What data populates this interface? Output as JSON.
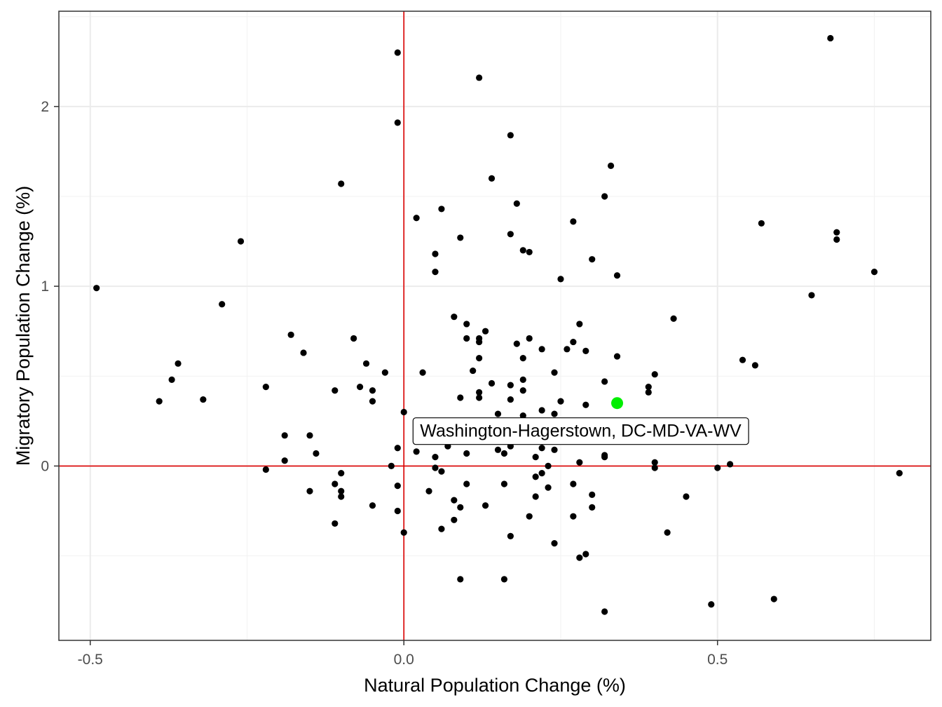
{
  "chart_data": {
    "type": "scatter",
    "title": "",
    "xlabel": "Natural Population Change (%)",
    "ylabel": "Migratory Population Change (%)",
    "xlim": [
      -0.55,
      0.84
    ],
    "ylim": [
      -0.97,
      2.53
    ],
    "x_ticks": [
      -0.5,
      0.0,
      0.5
    ],
    "x_tick_labels": [
      "-0.5",
      "0.0",
      "0.5"
    ],
    "y_ticks": [
      0,
      1,
      2
    ],
    "y_tick_labels": [
      "0",
      "1",
      "2"
    ],
    "grid": true,
    "theme": "bw",
    "reference_lines": {
      "x": 0,
      "y": 0,
      "color": "#dd0000"
    },
    "point_color": "#000000",
    "highlight_color": "#00ee00",
    "points": [
      {
        "x": -0.49,
        "y": 0.99
      },
      {
        "x": -0.39,
        "y": 0.36
      },
      {
        "x": -0.37,
        "y": 0.48
      },
      {
        "x": -0.36,
        "y": 0.57
      },
      {
        "x": -0.32,
        "y": 0.37
      },
      {
        "x": -0.29,
        "y": 0.9
      },
      {
        "x": -0.26,
        "y": 1.25
      },
      {
        "x": -0.22,
        "y": 0.44
      },
      {
        "x": -0.22,
        "y": -0.02
      },
      {
        "x": -0.19,
        "y": 0.17
      },
      {
        "x": -0.19,
        "y": 0.03
      },
      {
        "x": -0.18,
        "y": 0.73
      },
      {
        "x": -0.16,
        "y": 0.63
      },
      {
        "x": -0.15,
        "y": 0.17
      },
      {
        "x": -0.15,
        "y": -0.14
      },
      {
        "x": -0.14,
        "y": 0.07
      },
      {
        "x": -0.11,
        "y": 0.42
      },
      {
        "x": -0.11,
        "y": -0.1
      },
      {
        "x": -0.11,
        "y": -0.32
      },
      {
        "x": -0.1,
        "y": 1.57
      },
      {
        "x": -0.1,
        "y": -0.04
      },
      {
        "x": -0.1,
        "y": -0.14
      },
      {
        "x": -0.1,
        "y": -0.17
      },
      {
        "x": -0.08,
        "y": 0.71
      },
      {
        "x": -0.07,
        "y": 0.44
      },
      {
        "x": -0.06,
        "y": 0.57
      },
      {
        "x": -0.05,
        "y": 0.42
      },
      {
        "x": -0.05,
        "y": 0.36
      },
      {
        "x": -0.05,
        "y": -0.22
      },
      {
        "x": -0.03,
        "y": 0.52
      },
      {
        "x": -0.02,
        "y": 0.0
      },
      {
        "x": -0.01,
        "y": 2.3
      },
      {
        "x": -0.01,
        "y": 1.91
      },
      {
        "x": -0.01,
        "y": 0.1
      },
      {
        "x": -0.01,
        "y": -0.11
      },
      {
        "x": -0.01,
        "y": -0.25
      },
      {
        "x": 0.0,
        "y": 0.3
      },
      {
        "x": 0.0,
        "y": -0.37
      },
      {
        "x": 0.02,
        "y": 1.38
      },
      {
        "x": 0.02,
        "y": 0.08
      },
      {
        "x": 0.03,
        "y": 0.52
      },
      {
        "x": 0.04,
        "y": -0.14
      },
      {
        "x": 0.05,
        "y": 1.18
      },
      {
        "x": 0.05,
        "y": 1.08
      },
      {
        "x": 0.05,
        "y": 0.05
      },
      {
        "x": 0.05,
        "y": -0.01
      },
      {
        "x": 0.06,
        "y": 1.43
      },
      {
        "x": 0.06,
        "y": -0.03
      },
      {
        "x": 0.06,
        "y": -0.35
      },
      {
        "x": 0.07,
        "y": 0.11
      },
      {
        "x": 0.08,
        "y": 0.83
      },
      {
        "x": 0.08,
        "y": -0.19
      },
      {
        "x": 0.08,
        "y": -0.3
      },
      {
        "x": 0.09,
        "y": 1.27
      },
      {
        "x": 0.09,
        "y": 0.38
      },
      {
        "x": 0.09,
        "y": -0.23
      },
      {
        "x": 0.09,
        "y": -0.63
      },
      {
        "x": 0.1,
        "y": 0.79
      },
      {
        "x": 0.1,
        "y": 0.71
      },
      {
        "x": 0.1,
        "y": 0.07
      },
      {
        "x": 0.1,
        "y": -0.1
      },
      {
        "x": 0.11,
        "y": 0.53
      },
      {
        "x": 0.12,
        "y": 2.16
      },
      {
        "x": 0.12,
        "y": 0.71
      },
      {
        "x": 0.12,
        "y": 0.69
      },
      {
        "x": 0.12,
        "y": 0.6
      },
      {
        "x": 0.12,
        "y": 0.41
      },
      {
        "x": 0.12,
        "y": 0.38
      },
      {
        "x": 0.13,
        "y": 0.75
      },
      {
        "x": 0.13,
        "y": -0.22
      },
      {
        "x": 0.14,
        "y": 1.6
      },
      {
        "x": 0.14,
        "y": 0.46
      },
      {
        "x": 0.15,
        "y": 0.29
      },
      {
        "x": 0.15,
        "y": 0.09
      },
      {
        "x": 0.16,
        "y": 0.07
      },
      {
        "x": 0.16,
        "y": -0.1
      },
      {
        "x": 0.16,
        "y": -0.63
      },
      {
        "x": 0.17,
        "y": 1.84
      },
      {
        "x": 0.17,
        "y": 1.29
      },
      {
        "x": 0.17,
        "y": 0.45
      },
      {
        "x": 0.17,
        "y": 0.37
      },
      {
        "x": 0.17,
        "y": 0.11
      },
      {
        "x": 0.17,
        "y": -0.39
      },
      {
        "x": 0.18,
        "y": 1.46
      },
      {
        "x": 0.18,
        "y": 0.68
      },
      {
        "x": 0.19,
        "y": 1.2
      },
      {
        "x": 0.19,
        "y": 0.6
      },
      {
        "x": 0.19,
        "y": 0.48
      },
      {
        "x": 0.19,
        "y": 0.42
      },
      {
        "x": 0.19,
        "y": 0.28
      },
      {
        "x": 0.2,
        "y": 1.19
      },
      {
        "x": 0.2,
        "y": 0.71
      },
      {
        "x": 0.2,
        "y": -0.28
      },
      {
        "x": 0.21,
        "y": 0.05
      },
      {
        "x": 0.21,
        "y": -0.06
      },
      {
        "x": 0.21,
        "y": -0.17
      },
      {
        "x": 0.22,
        "y": 0.65
      },
      {
        "x": 0.22,
        "y": 0.31
      },
      {
        "x": 0.22,
        "y": 0.1
      },
      {
        "x": 0.22,
        "y": -0.04
      },
      {
        "x": 0.23,
        "y": 0.0
      },
      {
        "x": 0.23,
        "y": -0.12
      },
      {
        "x": 0.24,
        "y": 0.52
      },
      {
        "x": 0.24,
        "y": 0.29
      },
      {
        "x": 0.24,
        "y": 0.09
      },
      {
        "x": 0.24,
        "y": -0.43
      },
      {
        "x": 0.25,
        "y": 1.04
      },
      {
        "x": 0.25,
        "y": 0.36
      },
      {
        "x": 0.26,
        "y": 0.65
      },
      {
        "x": 0.27,
        "y": 1.36
      },
      {
        "x": 0.27,
        "y": 0.69
      },
      {
        "x": 0.27,
        "y": -0.1
      },
      {
        "x": 0.27,
        "y": -0.28
      },
      {
        "x": 0.28,
        "y": 0.79
      },
      {
        "x": 0.28,
        "y": 0.02
      },
      {
        "x": 0.28,
        "y": -0.51
      },
      {
        "x": 0.29,
        "y": 0.64
      },
      {
        "x": 0.29,
        "y": 0.34
      },
      {
        "x": 0.29,
        "y": -0.49
      },
      {
        "x": 0.3,
        "y": 1.15
      },
      {
        "x": 0.3,
        "y": -0.16
      },
      {
        "x": 0.3,
        "y": -0.23
      },
      {
        "x": 0.32,
        "y": 1.5
      },
      {
        "x": 0.32,
        "y": 0.47
      },
      {
        "x": 0.32,
        "y": 0.06
      },
      {
        "x": 0.32,
        "y": 0.05
      },
      {
        "x": 0.32,
        "y": -0.81
      },
      {
        "x": 0.33,
        "y": 1.67
      },
      {
        "x": 0.34,
        "y": 1.06
      },
      {
        "x": 0.34,
        "y": 0.61
      },
      {
        "x": 0.39,
        "y": 0.44
      },
      {
        "x": 0.39,
        "y": 0.41
      },
      {
        "x": 0.4,
        "y": 0.51
      },
      {
        "x": 0.4,
        "y": 0.02
      },
      {
        "x": 0.4,
        "y": -0.01
      },
      {
        "x": 0.42,
        "y": -0.37
      },
      {
        "x": 0.43,
        "y": 0.82
      },
      {
        "x": 0.45,
        "y": -0.17
      },
      {
        "x": 0.49,
        "y": -0.77
      },
      {
        "x": 0.5,
        "y": -0.01
      },
      {
        "x": 0.52,
        "y": 0.01
      },
      {
        "x": 0.54,
        "y": 0.59
      },
      {
        "x": 0.56,
        "y": 0.56
      },
      {
        "x": 0.57,
        "y": 1.35
      },
      {
        "x": 0.59,
        "y": -0.74
      },
      {
        "x": 0.65,
        "y": 0.95
      },
      {
        "x": 0.68,
        "y": 2.38
      },
      {
        "x": 0.69,
        "y": 1.3
      },
      {
        "x": 0.69,
        "y": 1.26
      },
      {
        "x": 0.75,
        "y": 1.08
      },
      {
        "x": 0.79,
        "y": -0.04
      }
    ],
    "highlight": {
      "x": 0.34,
      "y": 0.35,
      "label": "Washington-Hagerstown, DC-MD-VA-WV"
    }
  }
}
